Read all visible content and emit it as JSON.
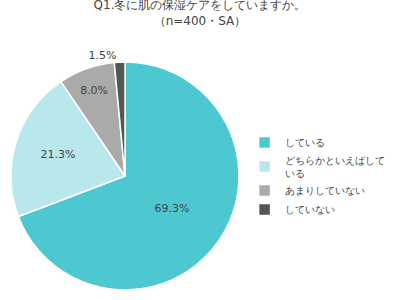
{
  "chart_data": {
    "type": "pie",
    "title": "Q1.冬に肌の保湿ケアをしていますか。",
    "subtitle": "（n=400・SA）",
    "categories": [
      "している",
      "どちらかといえばして\nいる",
      "あまりしていない",
      "していない"
    ],
    "values": [
      69.3,
      21.3,
      8.0,
      1.5
    ],
    "value_labels": [
      "69.3%",
      "21.3%",
      "8.0%",
      "1.5%"
    ],
    "colors": [
      "#4DC8D0",
      "#B8E8EC",
      "#AAAAAA",
      "#555555"
    ],
    "data_labels": true,
    "legend": "right"
  }
}
